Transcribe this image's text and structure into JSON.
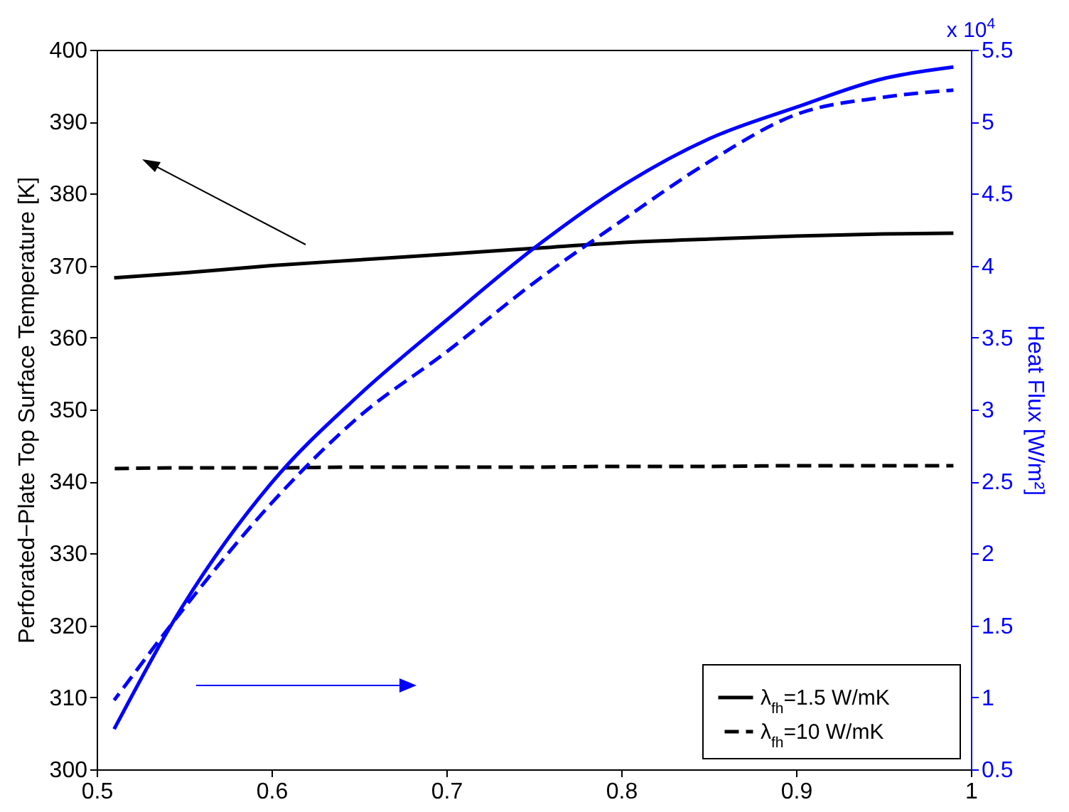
{
  "chart_data": {
    "type": "line",
    "ylabel": "Perforated−Plate Top Surface Temperature [K]",
    "y2label": "Heat Flux [W/m²]",
    "x": [
      0.51,
      0.55,
      0.6,
      0.65,
      0.7,
      0.75,
      0.8,
      0.85,
      0.9,
      0.95,
      0.99
    ],
    "series": [
      {
        "name": "λ$_{fh}$=1.5 W/mK",
        "color": "#000000",
        "line_style": "solid",
        "values": [
          368.3,
          369,
          370,
          370.8,
          371.6,
          372.4,
          373.2,
          373.7,
          374.1,
          374.4,
          374.5
        ]
      },
      {
        "name": "λ$_{fh}$=10 W/mK",
        "color": "#000000",
        "line_style": "dashed",
        "values": [
          341.8,
          341.9,
          341.9,
          342,
          342,
          342,
          342.1,
          342.1,
          342.2,
          342.2,
          342.2
        ]
      },
      {
        "color": "#0000ff",
        "line_style": "solid",
        "axis": "y2",
        "values": [
          0.78,
          1.65,
          2.49,
          3.1,
          3.62,
          4.12,
          4.55,
          4.88,
          5.1,
          5.3,
          5.38
        ]
      },
      {
        "color": "#0000ff",
        "line_style": "dashed",
        "axis": "y2",
        "values": [
          0.98,
          1.62,
          2.35,
          2.95,
          3.4,
          3.88,
          4.31,
          4.72,
          5.05,
          5.17,
          5.22
        ]
      }
    ],
    "xlim": [
      0.5,
      1
    ],
    "xticks": [
      0.5,
      0.6,
      0.7,
      0.8,
      0.9,
      1
    ],
    "ylim": [
      300,
      400
    ],
    "yticks": [
      300,
      310,
      320,
      330,
      340,
      350,
      360,
      370,
      380,
      390,
      400
    ],
    "y2lim": [
      0.5,
      5.5
    ],
    "y2ticks": [
      0.5,
      1,
      1.5,
      2,
      2.5,
      3,
      3.5,
      4,
      4.5,
      5,
      5.5
    ],
    "annotations": [
      "x 10$^{4}$"
    ],
    "grid": false,
    "legend": "bottom right"
  }
}
